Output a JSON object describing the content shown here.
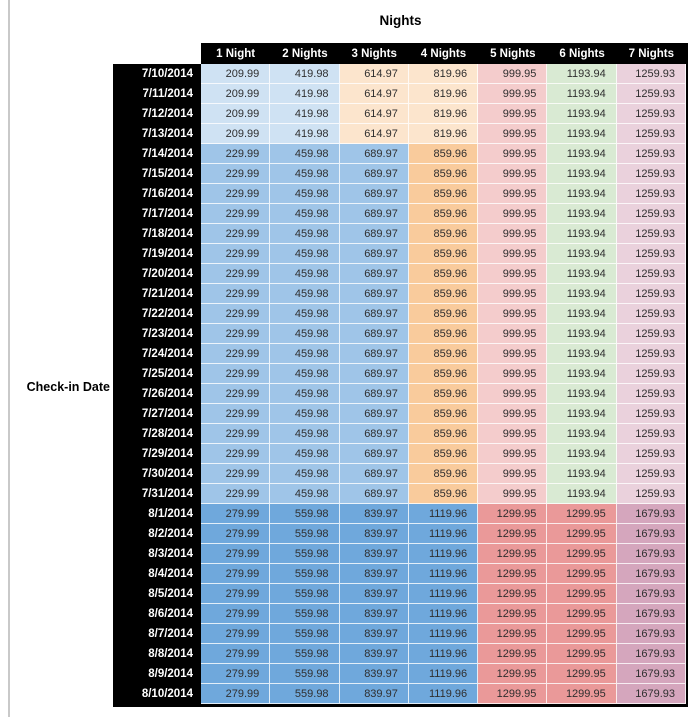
{
  "chart_data": {
    "type": "table",
    "title": "Nights",
    "row_axis_label": "Check-in Date",
    "columns": [
      "1 Night",
      "2 Nights",
      "3 Nights",
      "4 Nights",
      "5 Nights",
      "6 Nights",
      "7 Nights"
    ],
    "header_bg": "#000000",
    "header_text_color": "#ffffff",
    "value_text_color": "#2f2f2f",
    "tier_colors": {
      "low": [
        "#CFE2F3",
        "#CFE2F3",
        "#FCE5CD",
        "#FCE5CD",
        "#F4CCCC",
        "#D9EAD3",
        "#EAD1DC"
      ],
      "mid": [
        "#9FC5E8",
        "#9FC5E8",
        "#9FC5E8",
        "#F9CB9C",
        "#F4CCCC",
        "#D9EAD3",
        "#EAD1DC"
      ],
      "high": [
        "#6FA8DC",
        "#6FA8DC",
        "#6FA8DC",
        "#6FA8DC",
        "#EA9999",
        "#EA9999",
        "#D5A6BD"
      ]
    },
    "rows": [
      {
        "date": "7/10/2014",
        "tier": "low",
        "values": [
          "209.99",
          "419.98",
          "614.97",
          "819.96",
          "999.95",
          "1193.94",
          "1259.93"
        ]
      },
      {
        "date": "7/11/2014",
        "tier": "low",
        "values": [
          "209.99",
          "419.98",
          "614.97",
          "819.96",
          "999.95",
          "1193.94",
          "1259.93"
        ]
      },
      {
        "date": "7/12/2014",
        "tier": "low",
        "values": [
          "209.99",
          "419.98",
          "614.97",
          "819.96",
          "999.95",
          "1193.94",
          "1259.93"
        ]
      },
      {
        "date": "7/13/2014",
        "tier": "low",
        "values": [
          "209.99",
          "419.98",
          "614.97",
          "819.96",
          "999.95",
          "1193.94",
          "1259.93"
        ]
      },
      {
        "date": "7/14/2014",
        "tier": "mid",
        "values": [
          "229.99",
          "459.98",
          "689.97",
          "859.96",
          "999.95",
          "1193.94",
          "1259.93"
        ]
      },
      {
        "date": "7/15/2014",
        "tier": "mid",
        "values": [
          "229.99",
          "459.98",
          "689.97",
          "859.96",
          "999.95",
          "1193.94",
          "1259.93"
        ]
      },
      {
        "date": "7/16/2014",
        "tier": "mid",
        "values": [
          "229.99",
          "459.98",
          "689.97",
          "859.96",
          "999.95",
          "1193.94",
          "1259.93"
        ]
      },
      {
        "date": "7/17/2014",
        "tier": "mid",
        "values": [
          "229.99",
          "459.98",
          "689.97",
          "859.96",
          "999.95",
          "1193.94",
          "1259.93"
        ]
      },
      {
        "date": "7/18/2014",
        "tier": "mid",
        "values": [
          "229.99",
          "459.98",
          "689.97",
          "859.96",
          "999.95",
          "1193.94",
          "1259.93"
        ]
      },
      {
        "date": "7/19/2014",
        "tier": "mid",
        "values": [
          "229.99",
          "459.98",
          "689.97",
          "859.96",
          "999.95",
          "1193.94",
          "1259.93"
        ]
      },
      {
        "date": "7/20/2014",
        "tier": "mid",
        "values": [
          "229.99",
          "459.98",
          "689.97",
          "859.96",
          "999.95",
          "1193.94",
          "1259.93"
        ]
      },
      {
        "date": "7/21/2014",
        "tier": "mid",
        "values": [
          "229.99",
          "459.98",
          "689.97",
          "859.96",
          "999.95",
          "1193.94",
          "1259.93"
        ]
      },
      {
        "date": "7/22/2014",
        "tier": "mid",
        "values": [
          "229.99",
          "459.98",
          "689.97",
          "859.96",
          "999.95",
          "1193.94",
          "1259.93"
        ]
      },
      {
        "date": "7/23/2014",
        "tier": "mid",
        "values": [
          "229.99",
          "459.98",
          "689.97",
          "859.96",
          "999.95",
          "1193.94",
          "1259.93"
        ]
      },
      {
        "date": "7/24/2014",
        "tier": "mid",
        "values": [
          "229.99",
          "459.98",
          "689.97",
          "859.96",
          "999.95",
          "1193.94",
          "1259.93"
        ]
      },
      {
        "date": "7/25/2014",
        "tier": "mid",
        "values": [
          "229.99",
          "459.98",
          "689.97",
          "859.96",
          "999.95",
          "1193.94",
          "1259.93"
        ]
      },
      {
        "date": "7/26/2014",
        "tier": "mid",
        "values": [
          "229.99",
          "459.98",
          "689.97",
          "859.96",
          "999.95",
          "1193.94",
          "1259.93"
        ]
      },
      {
        "date": "7/27/2014",
        "tier": "mid",
        "values": [
          "229.99",
          "459.98",
          "689.97",
          "859.96",
          "999.95",
          "1193.94",
          "1259.93"
        ]
      },
      {
        "date": "7/28/2014",
        "tier": "mid",
        "values": [
          "229.99",
          "459.98",
          "689.97",
          "859.96",
          "999.95",
          "1193.94",
          "1259.93"
        ]
      },
      {
        "date": "7/29/2014",
        "tier": "mid",
        "values": [
          "229.99",
          "459.98",
          "689.97",
          "859.96",
          "999.95",
          "1193.94",
          "1259.93"
        ]
      },
      {
        "date": "7/30/2014",
        "tier": "mid",
        "values": [
          "229.99",
          "459.98",
          "689.97",
          "859.96",
          "999.95",
          "1193.94",
          "1259.93"
        ]
      },
      {
        "date": "7/31/2014",
        "tier": "mid",
        "values": [
          "229.99",
          "459.98",
          "689.97",
          "859.96",
          "999.95",
          "1193.94",
          "1259.93"
        ]
      },
      {
        "date": "8/1/2014",
        "tier": "high",
        "values": [
          "279.99",
          "559.98",
          "839.97",
          "1119.96",
          "1299.95",
          "1299.95",
          "1679.93"
        ]
      },
      {
        "date": "8/2/2014",
        "tier": "high",
        "values": [
          "279.99",
          "559.98",
          "839.97",
          "1119.96",
          "1299.95",
          "1299.95",
          "1679.93"
        ]
      },
      {
        "date": "8/3/2014",
        "tier": "high",
        "values": [
          "279.99",
          "559.98",
          "839.97",
          "1119.96",
          "1299.95",
          "1299.95",
          "1679.93"
        ]
      },
      {
        "date": "8/4/2014",
        "tier": "high",
        "values": [
          "279.99",
          "559.98",
          "839.97",
          "1119.96",
          "1299.95",
          "1299.95",
          "1679.93"
        ]
      },
      {
        "date": "8/5/2014",
        "tier": "high",
        "values": [
          "279.99",
          "559.98",
          "839.97",
          "1119.96",
          "1299.95",
          "1299.95",
          "1679.93"
        ]
      },
      {
        "date": "8/6/2014",
        "tier": "high",
        "values": [
          "279.99",
          "559.98",
          "839.97",
          "1119.96",
          "1299.95",
          "1299.95",
          "1679.93"
        ]
      },
      {
        "date": "8/7/2014",
        "tier": "high",
        "values": [
          "279.99",
          "559.98",
          "839.97",
          "1119.96",
          "1299.95",
          "1299.95",
          "1679.93"
        ]
      },
      {
        "date": "8/8/2014",
        "tier": "high",
        "values": [
          "279.99",
          "559.98",
          "839.97",
          "1119.96",
          "1299.95",
          "1299.95",
          "1679.93"
        ]
      },
      {
        "date": "8/9/2014",
        "tier": "high",
        "values": [
          "279.99",
          "559.98",
          "839.97",
          "1119.96",
          "1299.95",
          "1299.95",
          "1679.93"
        ]
      },
      {
        "date": "8/10/2014",
        "tier": "high",
        "values": [
          "279.99",
          "559.98",
          "839.97",
          "1119.96",
          "1299.95",
          "1299.95",
          "1679.93"
        ]
      }
    ]
  }
}
